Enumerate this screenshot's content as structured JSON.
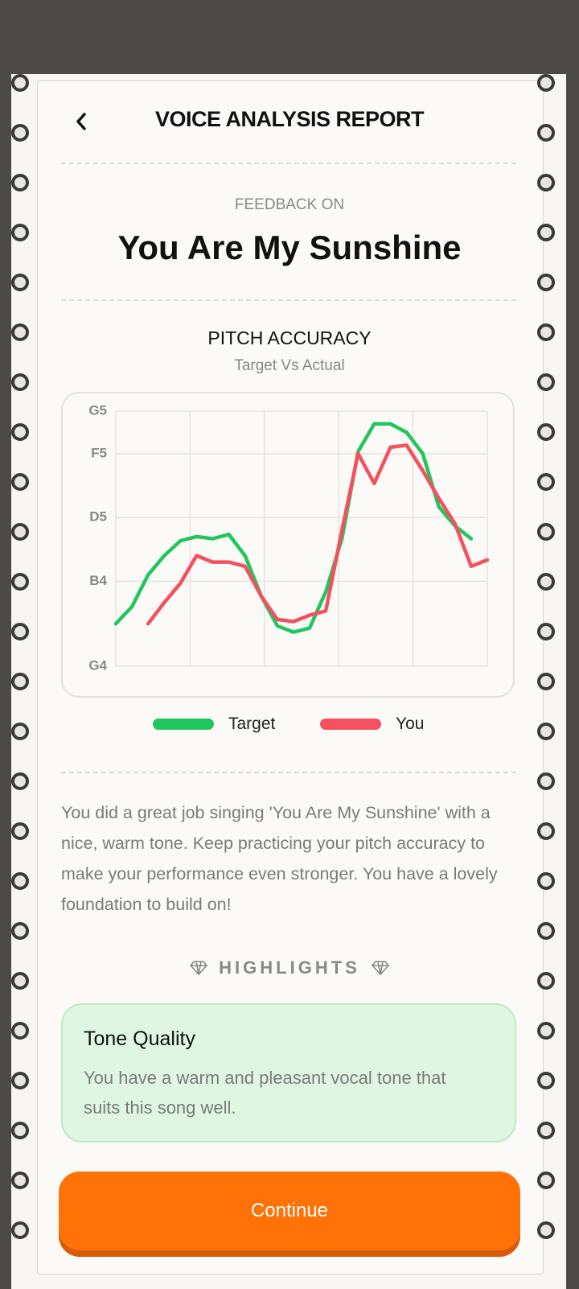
{
  "header": {
    "title": "VOICE ANALYSIS REPORT"
  },
  "feedback": {
    "label": "FEEDBACK ON",
    "song_title": "You Are My Sunshine"
  },
  "chart_data": {
    "type": "line",
    "title": "PITCH ACCURACY",
    "subtitle": "Target Vs Actual",
    "categories": [
      null,
      null,
      null,
      null,
      null,
      null,
      null,
      null,
      null,
      null,
      null,
      null,
      null,
      null,
      null,
      null,
      null,
      null,
      null,
      null,
      null,
      null,
      null,
      null
    ],
    "series": [
      {
        "name": "Target",
        "color": "#22c55e",
        "values": [
          69.0,
          69.8,
          71.3,
          72.2,
          72.9,
          73.1,
          73.0,
          73.2,
          72.2,
          70.3,
          68.9,
          68.6,
          68.8,
          70.5,
          73.0,
          77.1,
          78.4,
          78.4,
          78.0,
          77.0,
          74.5,
          73.6,
          73.0,
          null
        ]
      },
      {
        "name": "You",
        "color": "#f4505f",
        "values": [
          null,
          null,
          69.0,
          70.0,
          70.9,
          72.2,
          71.9,
          71.9,
          71.7,
          70.3,
          69.2,
          69.1,
          69.4,
          69.6,
          73.4,
          77.0,
          75.6,
          77.3,
          77.4,
          76.2,
          74.9,
          73.7,
          71.7,
          72.0
        ]
      }
    ],
    "ylim": [
      67,
      79
    ],
    "yticks": [
      {
        "value": 67,
        "label": "G4"
      },
      {
        "value": 71,
        "label": "B4"
      },
      {
        "value": 74,
        "label": "D5"
      },
      {
        "value": 77,
        "label": "F5"
      },
      {
        "value": 79,
        "label": "G5"
      }
    ],
    "grid": true
  },
  "summary": "You did a great job singing 'You Are My Sunshine' with a nice, warm tone. Keep practicing your pitch accuracy to make your performance even stronger. You have a lovely foundation to build on!",
  "highlights": {
    "heading": "HIGHLIGHTS",
    "items": [
      {
        "title": "Tone Quality",
        "text": "You have a warm and pleasant vocal tone that suits this song well."
      }
    ]
  },
  "button": {
    "label": "Continue"
  }
}
